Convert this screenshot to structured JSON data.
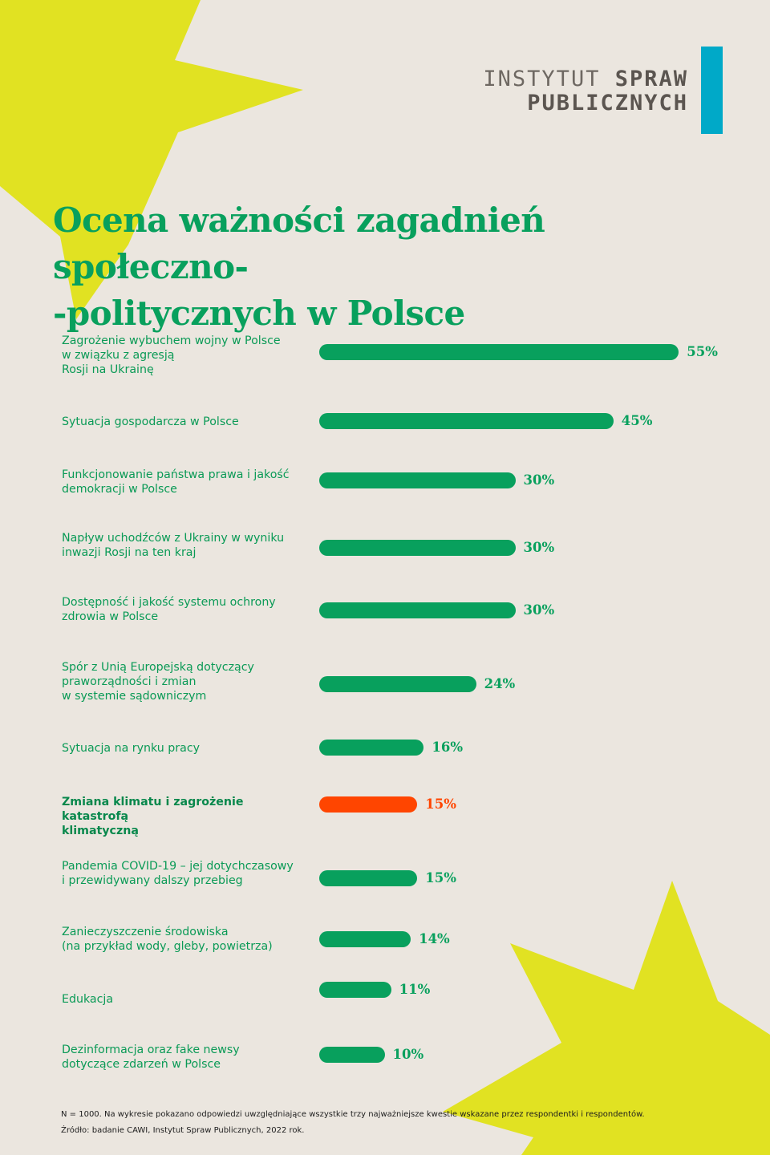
{
  "header": {
    "logo_line1_light": "INSTYTUT ",
    "logo_line1_bold": "SPRAW",
    "logo_line2": "PUBLICZNYCH",
    "logo_accent_color": "#00a9c8"
  },
  "colors": {
    "background": "#ebe6df",
    "bar": "#08a05d",
    "highlight": "#ff4500",
    "star": "#e1e222"
  },
  "chart_data": {
    "type": "bar",
    "orientation": "horizontal",
    "title_line1": "Ocena ważności zagadnień społeczno-",
    "title_line2": "-politycznych w Polsce",
    "unit": "%",
    "categories": [
      "Zagrożenie wybuchem wojny w Polsce\nw związku z agresją\nRosji na Ukrainę",
      "Sytuacja gospodarcza w Polsce",
      "Funkcjonowanie państwa prawa i jakość\ndemokracji w Polsce",
      "Napływ uchodźców z Ukrainy w wyniku\ninwazji Rosji na ten kraj",
      "Dostępność i jakość systemu ochrony\nzdrowia w Polsce",
      "Spór z Unią Europejską dotyczący\npraworządności i zmian\nw systemie sądowniczym",
      "Sytuacja na rynku pracy",
      "Zmiana klimatu i zagrożenie katastrofą\nklimatyczną",
      "Pandemia COVID-19 – jej dotychczasowy\ni przewidywany dalszy przebieg",
      "Zanieczyszczenie środowiska\n(na przykład wody, gleby, powietrza)",
      "Edukacja",
      "Dezinformacja oraz  fake newsy\ndotyczące zdarzeń w Polsce"
    ],
    "values": [
      55,
      45,
      30,
      30,
      30,
      24,
      16,
      15,
      15,
      14,
      11,
      10
    ],
    "value_labels": [
      "55%",
      "45%",
      "30%",
      "30%",
      "30%",
      "24%",
      "16%",
      "15%",
      "15%",
      "14%",
      "11%",
      "10%"
    ],
    "highlighted": [
      false,
      false,
      false,
      false,
      false,
      false,
      false,
      true,
      false,
      false,
      false,
      false
    ]
  },
  "footnote": {
    "line1": "N = 1000. Na wykresie pokazano odpowiedzi uwzględniające wszystkie trzy najważniejsze kwestie wskazane przez respondentki i respondentów.",
    "line2": "Źródło: badanie CAWI, Instytut Spraw Publicznych, 2022 rok."
  }
}
